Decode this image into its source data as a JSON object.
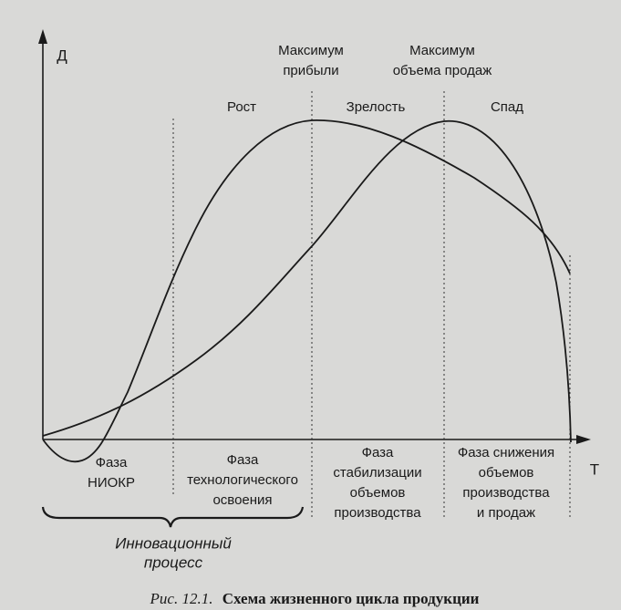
{
  "axes": {
    "y_label": "Д",
    "x_label": "Т"
  },
  "peaks": [
    {
      "lines": [
        "Максимум",
        "прибыли"
      ]
    },
    {
      "lines": [
        "Максимум",
        "объема продаж"
      ]
    }
  ],
  "stages": [
    "Рост",
    "Зрелость",
    "Спад"
  ],
  "phases": [
    {
      "lines": [
        "Фаза",
        "НИОКР"
      ]
    },
    {
      "lines": [
        "Фаза",
        "технологического",
        "освоения"
      ]
    },
    {
      "lines": [
        "Фаза",
        "стабилизации",
        "объемов",
        "производства"
      ]
    },
    {
      "lines": [
        "Фаза снижения",
        "объемов",
        "производства",
        "и продаж"
      ]
    }
  ],
  "brace_label": {
    "lines": [
      "Инновационный",
      "процесс"
    ]
  },
  "caption": {
    "number": "Рис. 12.1.",
    "title": "Схема жизненного цикла продукции"
  }
}
